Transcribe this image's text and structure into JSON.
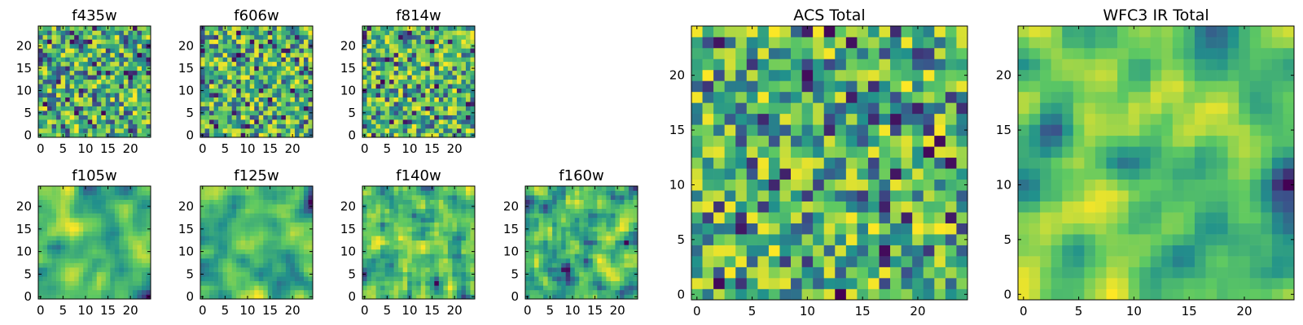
{
  "figure": {
    "colormap": [
      "#440154",
      "#3b528b",
      "#21918c",
      "#5ec962",
      "#fde725"
    ],
    "background": "#ffffff"
  },
  "chart_data": [
    {
      "type": "heatmap",
      "title": "f435w",
      "grid_size": 25,
      "xlim": [
        -0.5,
        24.5
      ],
      "ylim": [
        -0.5,
        24.5
      ],
      "xticks": [
        0,
        5,
        10,
        15,
        20
      ],
      "yticks": [
        0,
        5,
        10,
        15,
        20
      ],
      "seed": 11,
      "smoothness": 0
    },
    {
      "type": "heatmap",
      "title": "f606w",
      "grid_size": 25,
      "xlim": [
        -0.5,
        24.5
      ],
      "ylim": [
        -0.5,
        24.5
      ],
      "xticks": [
        0,
        5,
        10,
        15,
        20
      ],
      "yticks": [
        0,
        5,
        10,
        15,
        20
      ],
      "seed": 23,
      "smoothness": 0
    },
    {
      "type": "heatmap",
      "title": "f814w",
      "grid_size": 25,
      "xlim": [
        -0.5,
        24.5
      ],
      "ylim": [
        -0.5,
        24.5
      ],
      "xticks": [
        0,
        5,
        10,
        15,
        20
      ],
      "yticks": [
        0,
        5,
        10,
        15,
        20
      ],
      "seed": 37,
      "smoothness": 0
    },
    {
      "type": "heatmap",
      "title": "f105w",
      "grid_size": 25,
      "xlim": [
        -0.5,
        24.5
      ],
      "ylim": [
        -0.5,
        24.5
      ],
      "xticks": [
        0,
        5,
        10,
        15,
        20
      ],
      "yticks": [
        0,
        5,
        10,
        15,
        20
      ],
      "seed": 41,
      "smoothness": 2
    },
    {
      "type": "heatmap",
      "title": "f125w",
      "grid_size": 25,
      "xlim": [
        -0.5,
        24.5
      ],
      "ylim": [
        -0.5,
        24.5
      ],
      "xticks": [
        0,
        5,
        10,
        15,
        20
      ],
      "yticks": [
        0,
        5,
        10,
        15,
        20
      ],
      "seed": 53,
      "smoothness": 2
    },
    {
      "type": "heatmap",
      "title": "f140w",
      "grid_size": 25,
      "xlim": [
        -0.5,
        24.5
      ],
      "ylim": [
        -0.5,
        24.5
      ],
      "xticks": [
        0,
        5,
        10,
        15,
        20
      ],
      "yticks": [
        0,
        5,
        10,
        15,
        20
      ],
      "seed": 67,
      "smoothness": 1
    },
    {
      "type": "heatmap",
      "title": "f160w",
      "grid_size": 25,
      "xlim": [
        -0.5,
        24.5
      ],
      "ylim": [
        -0.5,
        24.5
      ],
      "xticks": [
        0,
        5,
        10,
        15,
        20
      ],
      "yticks": [
        0,
        5,
        10,
        15,
        20
      ],
      "seed": 79,
      "smoothness": 1
    },
    {
      "type": "heatmap",
      "title": "ACS Total",
      "grid_size": 25,
      "xlim": [
        -0.5,
        24.5
      ],
      "ylim": [
        -0.5,
        24.5
      ],
      "xticks": [
        0,
        5,
        10,
        15,
        20
      ],
      "yticks": [
        0,
        5,
        10,
        15,
        20
      ],
      "seed": 97,
      "smoothness": 0
    },
    {
      "type": "heatmap",
      "title": "WFC3 IR Total",
      "grid_size": 25,
      "xlim": [
        -0.5,
        24.5
      ],
      "ylim": [
        -0.5,
        24.5
      ],
      "xticks": [
        0,
        5,
        10,
        15,
        20
      ],
      "yticks": [
        0,
        5,
        10,
        15,
        20
      ],
      "seed": 113,
      "smoothness": 2
    }
  ]
}
